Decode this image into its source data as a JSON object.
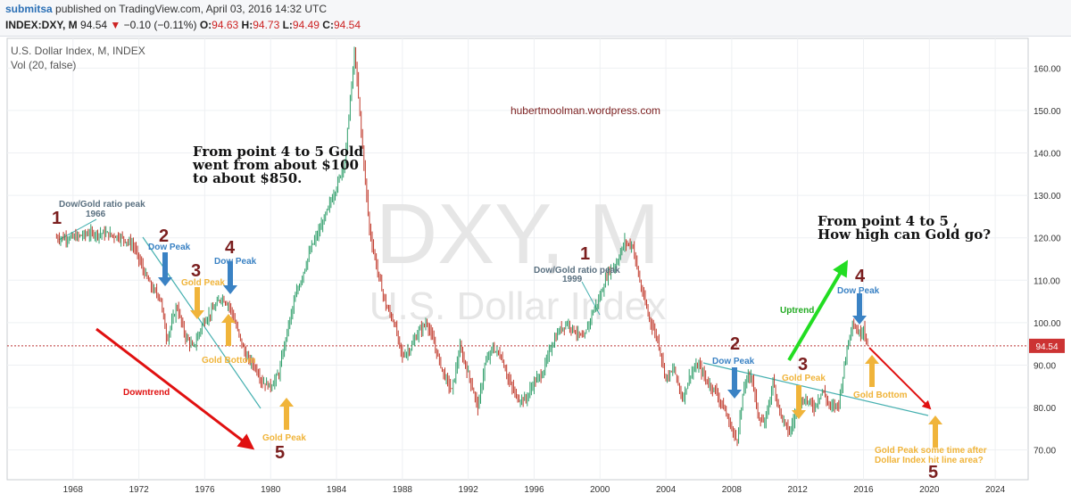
{
  "header": {
    "user": "submitsa",
    "published": "published on TradingView.com, April 03, 2016 14:32 UTC",
    "symbol": "INDEX:DXY, M",
    "last": "94.54",
    "change": "−0.10 (−0.11%)",
    "o_label": "O:",
    "o": "94.63",
    "h_label": "H:",
    "h": "94.73",
    "l_label": "L:",
    "l": "94.49",
    "c_label": "C:",
    "c": "94.54"
  },
  "legend": {
    "line1": "U.S. Dollar Index, M, INDEX",
    "line2": "Vol (20, false)"
  },
  "watermark": {
    "big": "DXY, M",
    "small": "U.S. Dollar Index"
  },
  "site": "hubertmoolman.wordpress.com",
  "colors": {
    "up": "#2f9e6a",
    "down": "#c0392b",
    "annot_red": "#7b1f1f",
    "arrow_blue": "#3a82c4",
    "arrow_gold": "#f0b43a",
    "uptrend": "#22dd22",
    "downtrend": "#e01010",
    "trendline": "#46b0b0"
  },
  "chart_data": {
    "type": "line",
    "title": "U.S. Dollar Index, M, INDEX",
    "xlim": [
      1964,
      2026
    ],
    "ylim": [
      63,
      167
    ],
    "x_ticks": [
      "1968",
      "1972",
      "1976",
      "1980",
      "1984",
      "1988",
      "1992",
      "1996",
      "2000",
      "2004",
      "2008",
      "2012",
      "2016",
      "2020",
      "2024"
    ],
    "y_ticks": [
      "70.00",
      "80.00",
      "90.00",
      "100.00",
      "110.00",
      "120.00",
      "130.00",
      "140.00",
      "150.00",
      "160.00"
    ],
    "last_price": 94.54,
    "last_price_label": "94.54",
    "series": [
      {
        "points": [
          [
            1967.0,
            120
          ],
          [
            1968.0,
            120
          ],
          [
            1969.0,
            121
          ],
          [
            1970.0,
            121
          ],
          [
            1971.0,
            120
          ],
          [
            1971.7,
            118
          ],
          [
            1972.3,
            112
          ],
          [
            1972.8,
            108
          ],
          [
            1973.3,
            106
          ],
          [
            1973.7,
            96
          ],
          [
            1974.3,
            104
          ],
          [
            1974.8,
            97
          ],
          [
            1975.3,
            94
          ],
          [
            1975.9,
            100
          ],
          [
            1976.5,
            103
          ],
          [
            1977.0,
            106
          ],
          [
            1977.5,
            104
          ],
          [
            1978.0,
            98
          ],
          [
            1978.5,
            92
          ],
          [
            1979.0,
            90
          ],
          [
            1979.5,
            86
          ],
          [
            1980.0,
            85
          ],
          [
            1980.5,
            88
          ],
          [
            1981.0,
            98
          ],
          [
            1981.5,
            106
          ],
          [
            1982.0,
            112
          ],
          [
            1982.5,
            118
          ],
          [
            1983.0,
            122
          ],
          [
            1983.5,
            127
          ],
          [
            1984.0,
            132
          ],
          [
            1984.5,
            138
          ],
          [
            1985.1,
            164
          ],
          [
            1985.5,
            145
          ],
          [
            1986.0,
            122
          ],
          [
            1986.5,
            112
          ],
          [
            1987.0,
            104
          ],
          [
            1987.5,
            100
          ],
          [
            1988.0,
            92
          ],
          [
            1988.5,
            94
          ],
          [
            1989.0,
            98
          ],
          [
            1989.5,
            100
          ],
          [
            1990.0,
            94
          ],
          [
            1990.5,
            88
          ],
          [
            1991.0,
            84
          ],
          [
            1991.5,
            94
          ],
          [
            1992.0,
            88
          ],
          [
            1992.6,
            80
          ],
          [
            1993.0,
            90
          ],
          [
            1993.5,
            94
          ],
          [
            1994.0,
            92
          ],
          [
            1994.5,
            86
          ],
          [
            1995.0,
            82
          ],
          [
            1995.5,
            82
          ],
          [
            1996.0,
            86
          ],
          [
            1996.5,
            88
          ],
          [
            1997.0,
            94
          ],
          [
            1997.5,
            98
          ],
          [
            1998.0,
            100
          ],
          [
            1998.5,
            98
          ],
          [
            1999.0,
            96
          ],
          [
            1999.5,
            102
          ],
          [
            2000.0,
            106
          ],
          [
            2000.5,
            112
          ],
          [
            2001.0,
            114
          ],
          [
            2001.5,
            119
          ],
          [
            2002.0,
            118
          ],
          [
            2002.5,
            108
          ],
          [
            2003.0,
            101
          ],
          [
            2003.5,
            96
          ],
          [
            2004.0,
            87
          ],
          [
            2004.5,
            89
          ],
          [
            2005.0,
            82
          ],
          [
            2005.5,
            88
          ],
          [
            2006.0,
            90
          ],
          [
            2006.5,
            86
          ],
          [
            2007.0,
            84
          ],
          [
            2007.5,
            80
          ],
          [
            2008.0,
            75
          ],
          [
            2008.3,
            72
          ],
          [
            2008.8,
            86
          ],
          [
            2009.2,
            88
          ],
          [
            2009.6,
            78
          ],
          [
            2010.0,
            76
          ],
          [
            2010.5,
            86
          ],
          [
            2011.0,
            78
          ],
          [
            2011.5,
            74
          ],
          [
            2012.0,
            80
          ],
          [
            2012.5,
            82
          ],
          [
            2013.0,
            80
          ],
          [
            2013.5,
            84
          ],
          [
            2014.0,
            80
          ],
          [
            2014.5,
            81
          ],
          [
            2015.0,
            94
          ],
          [
            2015.3,
            100
          ],
          [
            2015.8,
            97
          ],
          [
            2016.0,
            99
          ],
          [
            2016.25,
            94.5
          ]
        ]
      }
    ]
  },
  "annotations": {
    "texts": {
      "gold_note_1": [
        "From point 4 to 5 Gold",
        "went from about $100",
        "to about $850."
      ],
      "gold_note_2": [
        "From point 4 to 5 ,",
        "How high can Gold go?"
      ],
      "dow_gold_peak_1966": [
        "Dow/Gold ratio peak",
        "1966"
      ],
      "dow_gold_peak_1999": [
        "Dow/Gold ratio peak",
        "1999"
      ],
      "dow_peak": "Dow Peak",
      "gold_peak": "Gold Peak",
      "gold_bottom": "Gold Bottom",
      "downtrend": "Downtrend",
      "uptrend": "Uptrend",
      "gold_peak_future": [
        "Gold Peak some time after",
        "Dollar Index hit line area?"
      ]
    },
    "points": [
      {
        "id": "p1-left",
        "text": "1"
      },
      {
        "id": "p2-left",
        "text": "2"
      },
      {
        "id": "p3-left",
        "text": "3"
      },
      {
        "id": "p4-left",
        "text": "4"
      },
      {
        "id": "p5-left",
        "text": "5"
      },
      {
        "id": "p1-right",
        "text": "1"
      },
      {
        "id": "p2-right",
        "text": "2"
      },
      {
        "id": "p3-right",
        "text": "3"
      },
      {
        "id": "p4-right",
        "text": "4"
      },
      {
        "id": "p5-right",
        "text": "5"
      }
    ]
  }
}
